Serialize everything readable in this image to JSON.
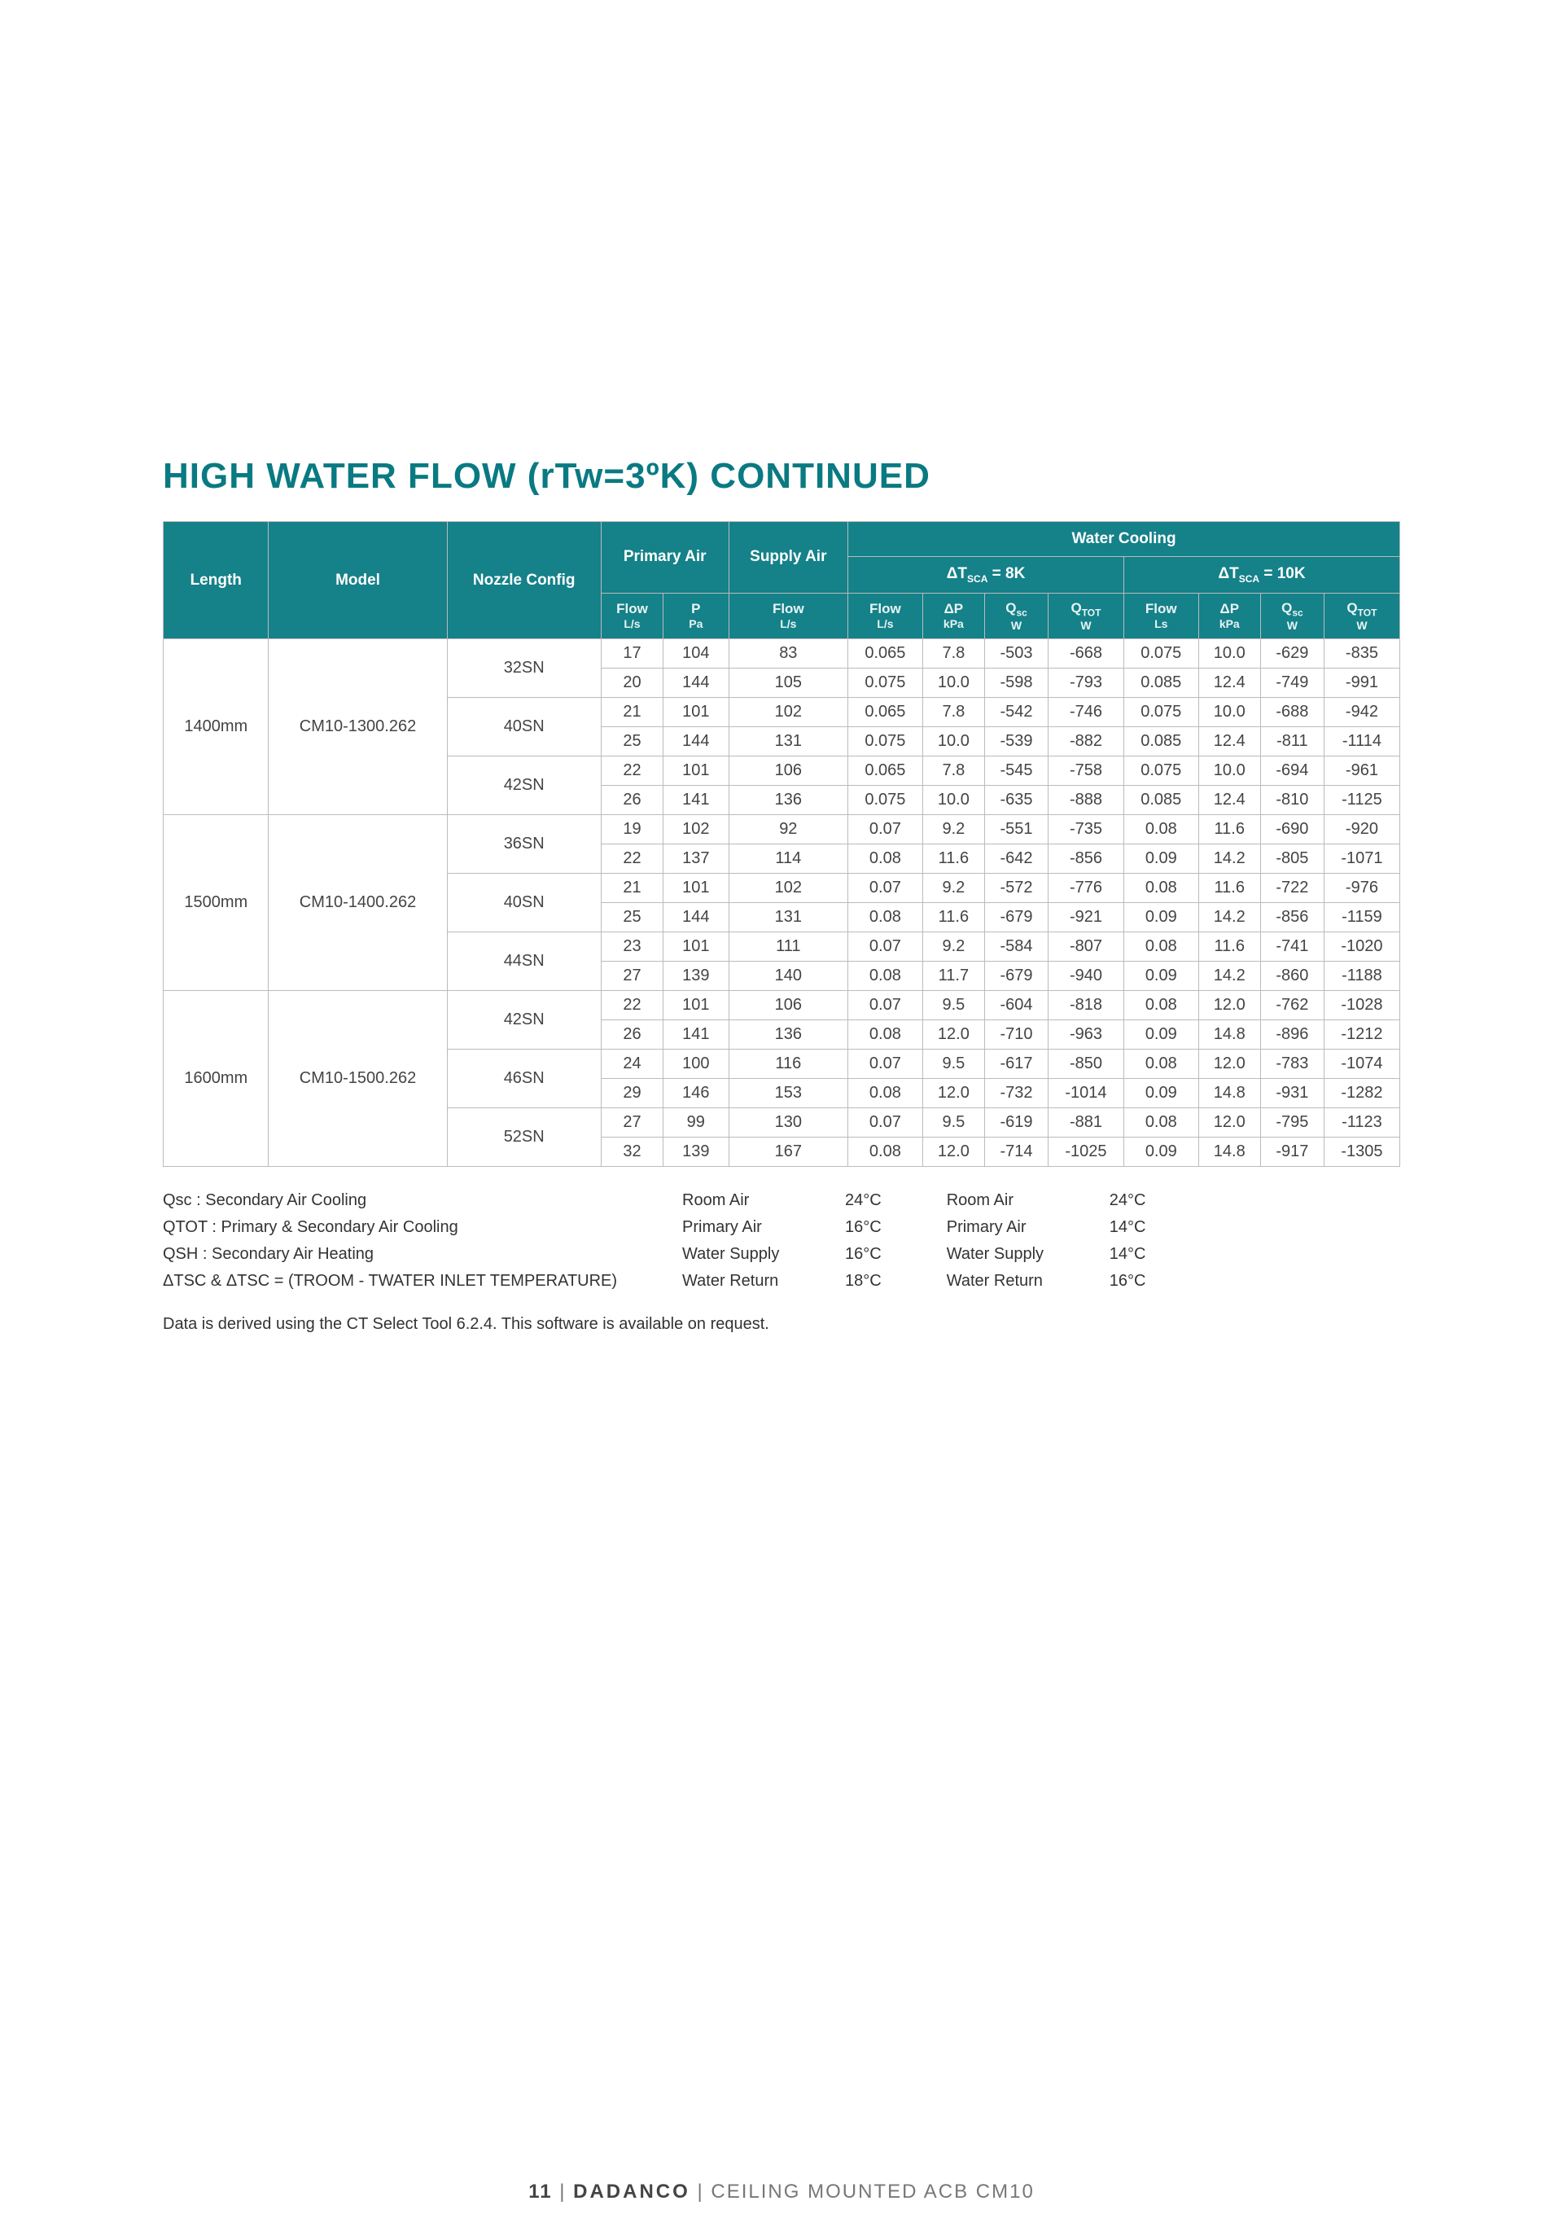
{
  "title": "HIGH WATER FLOW (rTw=3ºK) CONTINUED",
  "headers": {
    "primary_air": "Primary Air",
    "supply_air": "Supply Air",
    "water_cooling": "Water Cooling",
    "dt8": "ΔT",
    "dt8_sub": "SCA",
    "dt8_suffix": " = 8K",
    "dt10": "ΔT",
    "dt10_sub": "SCA",
    "dt10_suffix": " = 10K",
    "length": "Length",
    "model": "Model",
    "nozzle": "Nozzle Config",
    "flow_ls": "Flow L/s",
    "p_pa": "P Pa",
    "supply_flow_ls": "Flow L/s",
    "wc_flow_ls": "Flow L/s",
    "dp_kpa": "ΔP kPa",
    "qsc_w": "Qsc W",
    "qtot_w": "QTOT W",
    "wc10_flow_ls": "Flow Ls"
  },
  "groups": [
    {
      "length": "1400mm",
      "model": "CM10-1300.262",
      "configs": [
        {
          "nozzle": "32SN",
          "rows": [
            [
              "17",
              "104",
              "83",
              "0.065",
              "7.8",
              "-503",
              "-668",
              "0.075",
              "10.0",
              "-629",
              "-835"
            ],
            [
              "20",
              "144",
              "105",
              "0.075",
              "10.0",
              "-598",
              "-793",
              "0.085",
              "12.4",
              "-749",
              "-991"
            ]
          ]
        },
        {
          "nozzle": "40SN",
          "rows": [
            [
              "21",
              "101",
              "102",
              "0.065",
              "7.8",
              "-542",
              "-746",
              "0.075",
              "10.0",
              "-688",
              "-942"
            ],
            [
              "25",
              "144",
              "131",
              "0.075",
              "10.0",
              "-539",
              "-882",
              "0.085",
              "12.4",
              "-811",
              "-1114"
            ]
          ]
        },
        {
          "nozzle": "42SN",
          "rows": [
            [
              "22",
              "101",
              "106",
              "0.065",
              "7.8",
              "-545",
              "-758",
              "0.075",
              "10.0",
              "-694",
              "-961"
            ],
            [
              "26",
              "141",
              "136",
              "0.075",
              "10.0",
              "-635",
              "-888",
              "0.085",
              "12.4",
              "-810",
              "-1125"
            ]
          ]
        }
      ]
    },
    {
      "length": "1500mm",
      "model": "CM10-1400.262",
      "configs": [
        {
          "nozzle": "36SN",
          "rows": [
            [
              "19",
              "102",
              "92",
              "0.07",
              "9.2",
              "-551",
              "-735",
              "0.08",
              "11.6",
              "-690",
              "-920"
            ],
            [
              "22",
              "137",
              "114",
              "0.08",
              "11.6",
              "-642",
              "-856",
              "0.09",
              "14.2",
              "-805",
              "-1071"
            ]
          ]
        },
        {
          "nozzle": "40SN",
          "rows": [
            [
              "21",
              "101",
              "102",
              "0.07",
              "9.2",
              "-572",
              "-776",
              "0.08",
              "11.6",
              "-722",
              "-976"
            ],
            [
              "25",
              "144",
              "131",
              "0.08",
              "11.6",
              "-679",
              "-921",
              "0.09",
              "14.2",
              "-856",
              "-1159"
            ]
          ]
        },
        {
          "nozzle": "44SN",
          "rows": [
            [
              "23",
              "101",
              "111",
              "0.07",
              "9.2",
              "-584",
              "-807",
              "0.08",
              "11.6",
              "-741",
              "-1020"
            ],
            [
              "27",
              "139",
              "140",
              "0.08",
              "11.7",
              "-679",
              "-940",
              "0.09",
              "14.2",
              "-860",
              "-1188"
            ]
          ]
        }
      ]
    },
    {
      "length": "1600mm",
      "model": "CM10-1500.262",
      "configs": [
        {
          "nozzle": "42SN",
          "rows": [
            [
              "22",
              "101",
              "106",
              "0.07",
              "9.5",
              "-604",
              "-818",
              "0.08",
              "12.0",
              "-762",
              "-1028"
            ],
            [
              "26",
              "141",
              "136",
              "0.08",
              "12.0",
              "-710",
              "-963",
              "0.09",
              "14.8",
              "-896",
              "-1212"
            ]
          ]
        },
        {
          "nozzle": "46SN",
          "rows": [
            [
              "24",
              "100",
              "116",
              "0.07",
              "9.5",
              "-617",
              "-850",
              "0.08",
              "12.0",
              "-783",
              "-1074"
            ],
            [
              "29",
              "146",
              "153",
              "0.08",
              "12.0",
              "-732",
              "-1014",
              "0.09",
              "14.8",
              "-931",
              "-1282"
            ]
          ]
        },
        {
          "nozzle": "52SN",
          "rows": [
            [
              "27",
              "99",
              "130",
              "0.07",
              "9.5",
              "-619",
              "-881",
              "0.08",
              "12.0",
              "-795",
              "-1123"
            ],
            [
              "32",
              "139",
              "167",
              "0.08",
              "12.0",
              "-714",
              "-1025",
              "0.09",
              "14.8",
              "-917",
              "-1305"
            ]
          ]
        }
      ]
    }
  ],
  "legend_defs": [
    "Qsc : Secondary Air Cooling",
    "QTOT : Primary & Secondary Air Cooling",
    "QSH : Secondary Air Heating",
    "ΔTSC & ΔTSC = (TROOM - TWATER INLET TEMPERATURE)"
  ],
  "legend_set1": [
    {
      "lab": "Room Air",
      "val": "24°C"
    },
    {
      "lab": "Primary Air",
      "val": "16°C"
    },
    {
      "lab": "Water Supply",
      "val": "16°C"
    },
    {
      "lab": "Water Return",
      "val": "18°C"
    }
  ],
  "legend_set2": [
    {
      "lab": "Room Air",
      "val": "24°C"
    },
    {
      "lab": "Primary Air",
      "val": "14°C"
    },
    {
      "lab": "Water Supply",
      "val": "14°C"
    },
    {
      "lab": "Water Return",
      "val": "16°C"
    }
  ],
  "note": "Data is derived using the CT Select Tool 6.2.4. This software is available on request.",
  "footer": {
    "page": "11",
    "sep": "  |  ",
    "brand": "DADANCO",
    "sep2": "  |  ",
    "product": "CEILING MOUNTED ACB CM10"
  }
}
